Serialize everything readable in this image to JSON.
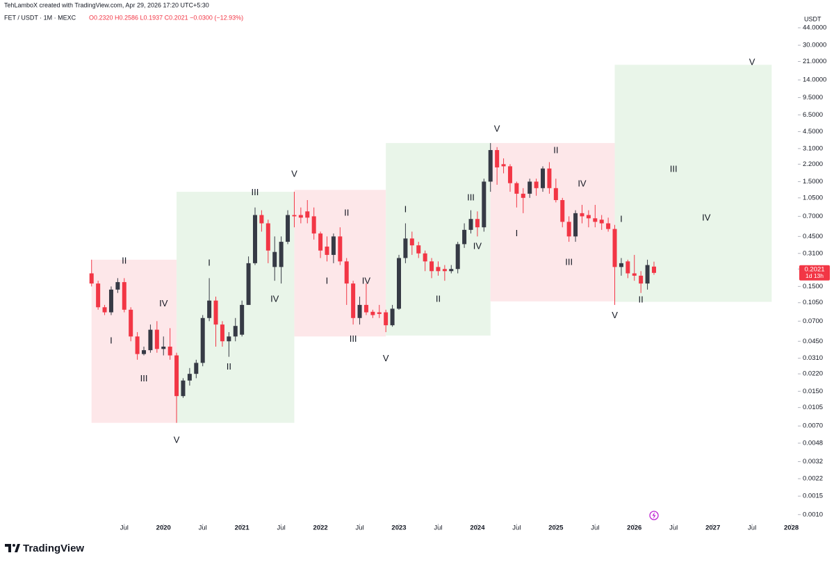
{
  "header": "TehLamboX created with TradingView.com, Apr 29, 2026 17:20 UTC+5:30",
  "logo": "TradingView",
  "chart_data": {
    "type": "candlestick",
    "title": "FET / USDT · 1M · MEXC",
    "legend_values": "O0.2320 H0.2586 L0.1937 C0.2021 −0.0300 (−12.93%)",
    "y_unit": "USDT",
    "last_price_label": "0.2021",
    "countdown": "1d 13h",
    "log_scale": true,
    "up_color": "#363a45",
    "down_color": "#f23645",
    "xlim": [
      "2017-12",
      "2028-02"
    ],
    "ylim": [
      0.00064,
      81
    ],
    "xticks": [
      {
        "value": "2019-07",
        "label": "Jul"
      },
      {
        "value": "2020-01",
        "label": "2020"
      },
      {
        "value": "2020-07",
        "label": "Jul"
      },
      {
        "value": "2021-01",
        "label": "2021"
      },
      {
        "value": "2021-07",
        "label": "Jul"
      },
      {
        "value": "2022-01",
        "label": "2022"
      },
      {
        "value": "2022-07",
        "label": "Jul"
      },
      {
        "value": "2023-01",
        "label": "2023"
      },
      {
        "value": "2023-07",
        "label": "Jul"
      },
      {
        "value": "2024-01",
        "label": "2024"
      },
      {
        "value": "2024-07",
        "label": "Jul"
      },
      {
        "value": "2025-01",
        "label": "2025"
      },
      {
        "value": "2025-07",
        "label": "Jul"
      },
      {
        "value": "2026-01",
        "label": "2026"
      },
      {
        "value": "2026-07",
        "label": "Jul"
      },
      {
        "value": "2027-01",
        "label": "2027"
      },
      {
        "value": "2027-07",
        "label": "Jul"
      },
      {
        "value": "2028-01",
        "label": "2028"
      }
    ],
    "yticks": [
      {
        "value": 44,
        "label": "44.0000"
      },
      {
        "value": 30,
        "label": "30.0000"
      },
      {
        "value": 21,
        "label": "21.0000"
      },
      {
        "value": 14,
        "label": "14.0000"
      },
      {
        "value": 9.5,
        "label": "9.5000"
      },
      {
        "value": 6.5,
        "label": "6.5000"
      },
      {
        "value": 4.5,
        "label": "4.5000"
      },
      {
        "value": 3.1,
        "label": "3.1000"
      },
      {
        "value": 2.2,
        "label": "2.2000"
      },
      {
        "value": 1.5,
        "label": "1.5000"
      },
      {
        "value": 1.05,
        "label": "1.0500"
      },
      {
        "value": 0.7,
        "label": "0.7000"
      },
      {
        "value": 0.45,
        "label": "0.4500"
      },
      {
        "value": 0.31,
        "label": "0.3100"
      },
      {
        "value": 0.22,
        "label": "0.2200"
      },
      {
        "value": 0.15,
        "label": "0.1500"
      },
      {
        "value": 0.105,
        "label": "0.1050"
      },
      {
        "value": 0.07,
        "label": "0.0700"
      },
      {
        "value": 0.045,
        "label": "0.0450"
      },
      {
        "value": 0.031,
        "label": "0.0310"
      },
      {
        "value": 0.022,
        "label": "0.0220"
      },
      {
        "value": 0.015,
        "label": "0.0150"
      },
      {
        "value": 0.0105,
        "label": "0.0105"
      },
      {
        "value": 0.007,
        "label": "0.0070"
      },
      {
        "value": 0.0048,
        "label": "0.0048"
      },
      {
        "value": 0.0032,
        "label": "0.0032"
      },
      {
        "value": 0.0022,
        "label": "0.0022"
      },
      {
        "value": 0.0015,
        "label": "0.0015"
      },
      {
        "value": 0.001,
        "label": "0.0010"
      }
    ],
    "x": [
      "2019-02",
      "2019-03",
      "2019-04",
      "2019-05",
      "2019-06",
      "2019-07",
      "2019-08",
      "2019-09",
      "2019-10",
      "2019-11",
      "2019-12",
      "2020-01",
      "2020-02",
      "2020-03",
      "2020-04",
      "2020-05",
      "2020-06",
      "2020-07",
      "2020-08",
      "2020-09",
      "2020-10",
      "2020-11",
      "2020-12",
      "2021-01",
      "2021-02",
      "2021-03",
      "2021-04",
      "2021-05",
      "2021-06",
      "2021-07",
      "2021-08",
      "2021-09",
      "2021-10",
      "2021-11",
      "2021-12",
      "2022-01",
      "2022-02",
      "2022-03",
      "2022-04",
      "2022-05",
      "2022-06",
      "2022-07",
      "2022-08",
      "2022-09",
      "2022-10",
      "2022-11",
      "2022-12",
      "2023-01",
      "2023-02",
      "2023-03",
      "2023-04",
      "2023-05",
      "2023-06",
      "2023-07",
      "2023-08",
      "2023-09",
      "2023-10",
      "2023-11",
      "2023-12",
      "2024-01",
      "2024-02",
      "2024-03",
      "2024-04",
      "2024-05",
      "2024-06",
      "2024-07",
      "2024-08",
      "2024-09",
      "2024-10",
      "2024-11",
      "2024-12",
      "2025-01",
      "2025-02",
      "2025-03",
      "2025-04",
      "2025-05",
      "2025-06",
      "2025-07",
      "2025-08",
      "2025-09",
      "2025-10",
      "2025-11",
      "2025-12",
      "2026-01",
      "2026-02",
      "2026-03",
      "2026-04"
    ],
    "open": [
      0.2,
      0.16,
      0.095,
      0.085,
      0.14,
      0.165,
      0.09,
      0.05,
      0.034,
      0.037,
      0.058,
      0.038,
      0.04,
      0.033,
      0.0135,
      0.019,
      0.022,
      0.028,
      0.075,
      0.11,
      0.065,
      0.045,
      0.05,
      0.052,
      0.1,
      0.25,
      0.72,
      0.6,
      0.23,
      0.23,
      0.4,
      0.72,
      0.72,
      0.78,
      0.7,
      0.48,
      0.36,
      0.3,
      0.45,
      0.26,
      0.16,
      0.075,
      0.1,
      0.086,
      0.085,
      0.085,
      0.064,
      0.092,
      0.28,
      0.43,
      0.37,
      0.31,
      0.26,
      0.23,
      0.22,
      0.21,
      0.22,
      0.38,
      0.52,
      0.66,
      0.55,
      1.5,
      3.0,
      2.2,
      2.1,
      1.45,
      1.15,
      1.15,
      1.5,
      1.3,
      2.0,
      1.3,
      1.0,
      0.62,
      0.45,
      0.75,
      0.72,
      0.67,
      0.65,
      0.6,
      0.53,
      0.23,
      0.26,
      0.2,
      0.19,
      0.16,
      0.232
    ],
    "high": [
      0.27,
      0.17,
      0.1,
      0.15,
      0.18,
      0.18,
      0.095,
      0.055,
      0.04,
      0.065,
      0.07,
      0.05,
      0.06,
      0.035,
      0.02,
      0.025,
      0.03,
      0.08,
      0.18,
      0.12,
      0.07,
      0.055,
      0.075,
      0.11,
      0.29,
      0.85,
      0.8,
      0.65,
      0.45,
      0.45,
      0.8,
      1.2,
      0.85,
      1.0,
      0.85,
      0.5,
      0.45,
      0.48,
      0.55,
      0.28,
      0.17,
      0.12,
      0.16,
      0.09,
      0.1,
      0.09,
      0.1,
      0.3,
      0.6,
      0.5,
      0.4,
      0.33,
      0.28,
      0.26,
      0.24,
      0.24,
      0.4,
      0.6,
      0.8,
      0.78,
      1.6,
      3.5,
      3.2,
      2.5,
      2.2,
      1.5,
      1.3,
      1.6,
      1.6,
      2.1,
      2.3,
      1.6,
      1.05,
      0.7,
      0.8,
      0.9,
      0.8,
      0.9,
      0.72,
      0.68,
      0.58,
      0.28,
      0.27,
      0.3,
      0.21,
      0.27,
      0.2586
    ],
    "low": [
      0.15,
      0.09,
      0.08,
      0.08,
      0.13,
      0.085,
      0.045,
      0.03,
      0.033,
      0.035,
      0.035,
      0.033,
      0.03,
      0.0075,
      0.013,
      0.017,
      0.02,
      0.026,
      0.07,
      0.04,
      0.04,
      0.032,
      0.045,
      0.05,
      0.1,
      0.24,
      0.5,
      0.25,
      0.17,
      0.16,
      0.38,
      0.55,
      0.6,
      0.6,
      0.42,
      0.28,
      0.26,
      0.25,
      0.24,
      0.1,
      0.065,
      0.065,
      0.08,
      0.075,
      0.075,
      0.055,
      0.062,
      0.09,
      0.25,
      0.3,
      0.28,
      0.21,
      0.18,
      0.19,
      0.17,
      0.2,
      0.2,
      0.35,
      0.48,
      0.45,
      0.5,
      1.2,
      1.4,
      1.8,
      1.2,
      0.85,
      0.75,
      1.05,
      1.1,
      1.2,
      1.15,
      0.95,
      0.55,
      0.4,
      0.4,
      0.6,
      0.55,
      0.55,
      0.52,
      0.5,
      0.1,
      0.19,
      0.18,
      0.17,
      0.13,
      0.14,
      0.1937
    ],
    "close": [
      0.16,
      0.095,
      0.085,
      0.14,
      0.165,
      0.09,
      0.05,
      0.034,
      0.037,
      0.058,
      0.038,
      0.04,
      0.033,
      0.0135,
      0.019,
      0.022,
      0.028,
      0.075,
      0.11,
      0.065,
      0.045,
      0.05,
      0.063,
      0.1,
      0.25,
      0.72,
      0.6,
      0.33,
      0.32,
      0.4,
      0.72,
      0.7,
      0.68,
      0.68,
      0.48,
      0.33,
      0.3,
      0.45,
      0.26,
      0.16,
      0.075,
      0.1,
      0.085,
      0.08,
      0.082,
      0.064,
      0.092,
      0.28,
      0.43,
      0.37,
      0.31,
      0.26,
      0.21,
      0.21,
      0.21,
      0.22,
      0.38,
      0.52,
      0.66,
      0.55,
      1.5,
      3.0,
      2.05,
      2.1,
      1.45,
      1.15,
      1.05,
      1.5,
      1.3,
      2.0,
      1.3,
      1.0,
      0.62,
      0.45,
      0.75,
      0.7,
      0.67,
      0.62,
      0.6,
      0.53,
      0.23,
      0.25,
      0.2,
      0.19,
      0.16,
      0.24,
      0.2021
    ],
    "zones": [
      {
        "from": "2019-02",
        "to": "2020-03",
        "top": 0.27,
        "bottom": 0.0075,
        "color": "#fde7e9"
      },
      {
        "from": "2020-03",
        "to": "2021-09",
        "top": 1.2,
        "bottom": 0.0075,
        "color": "#e9f5e9"
      },
      {
        "from": "2021-09",
        "to": "2022-11",
        "top": 1.25,
        "bottom": 0.05,
        "color": "#fde7e9"
      },
      {
        "from": "2022-11",
        "to": "2024-03",
        "top": 3.5,
        "bottom": 0.051,
        "color": "#e9f5e9"
      },
      {
        "from": "2024-03",
        "to": "2025-10",
        "top": 3.5,
        "bottom": 0.108,
        "color": "#fde7e9"
      },
      {
        "from": "2025-10",
        "to": "2027-10",
        "top": 19.5,
        "bottom": 0.107,
        "color": "#e9f5e9"
      }
    ],
    "annotations": [
      {
        "text": "II",
        "x": "2019-07",
        "y": 0.26
      },
      {
        "text": "IV",
        "x": "2020-01",
        "y": 0.102
      },
      {
        "text": "I",
        "x": "2019-05",
        "y": 0.045
      },
      {
        "text": "III",
        "x": "2019-10",
        "y": 0.0196
      },
      {
        "text": "V",
        "x": "2020-03",
        "y": 0.0051
      },
      {
        "text": "I",
        "x": "2020-08",
        "y": 0.25
      },
      {
        "text": "III",
        "x": "2021-03",
        "y": 1.17
      },
      {
        "text": "IV",
        "x": "2021-06",
        "y": 0.113
      },
      {
        "text": "II",
        "x": "2020-11",
        "y": 0.0254
      },
      {
        "text": "V",
        "x": "2021-09",
        "y": 1.76
      },
      {
        "text": "II",
        "x": "2022-05",
        "y": 0.75
      },
      {
        "text": "I",
        "x": "2022-02",
        "y": 0.168
      },
      {
        "text": "IV",
        "x": "2022-08",
        "y": 0.168
      },
      {
        "text": "III",
        "x": "2022-06",
        "y": 0.047
      },
      {
        "text": "V",
        "x": "2022-11",
        "y": 0.0305
      },
      {
        "text": "I",
        "x": "2023-02",
        "y": 0.81
      },
      {
        "text": "III",
        "x": "2023-12",
        "y": 1.05
      },
      {
        "text": "IV",
        "x": "2024-01",
        "y": 0.36
      },
      {
        "text": "II",
        "x": "2023-07",
        "y": 0.113
      },
      {
        "text": "V",
        "x": "2024-04",
        "y": 4.75
      },
      {
        "text": "II",
        "x": "2025-01",
        "y": 2.96
      },
      {
        "text": "IV",
        "x": "2025-05",
        "y": 1.42
      },
      {
        "text": "I",
        "x": "2024-07",
        "y": 0.475
      },
      {
        "text": "III",
        "x": "2025-03",
        "y": 0.254
      },
      {
        "text": "I",
        "x": "2025-11",
        "y": 0.65
      },
      {
        "text": "V",
        "x": "2025-10",
        "y": 0.0785
      },
      {
        "text": "II",
        "x": "2026-02",
        "y": 0.111
      },
      {
        "text": "III",
        "x": "2026-07",
        "y": 1.96
      },
      {
        "text": "IV",
        "x": "2026-12",
        "y": 0.67
      },
      {
        "text": "V",
        "x": "2027-07",
        "y": 20.5
      }
    ]
  }
}
